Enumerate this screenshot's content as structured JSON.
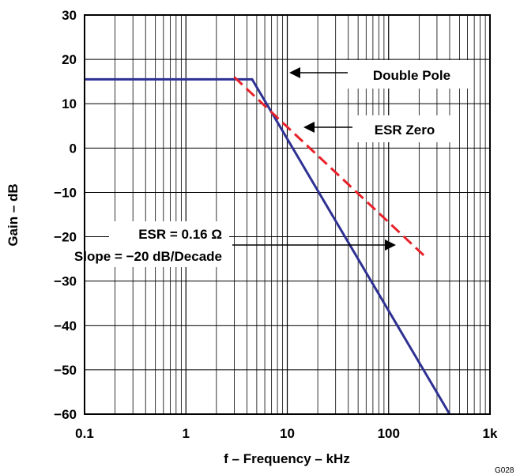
{
  "chart_data": {
    "type": "line",
    "xlabel": "f – Frequency – kHz",
    "ylabel": "Gain – dB",
    "xscale": "log",
    "xlim": [
      0.1,
      1000
    ],
    "ylim": [
      -60,
      30
    ],
    "grid": true,
    "x_tick_labels": [
      "0.1",
      "1",
      "10",
      "100",
      "1k"
    ],
    "y_tick_labels": [
      "30",
      "20",
      "10",
      "0",
      "−10",
      "−20",
      "−30",
      "−40",
      "−50",
      "−60"
    ],
    "series": [
      {
        "color": "#2e3192",
        "style": "solid",
        "x": [
          0.1,
          4.5,
          400
        ],
        "y": [
          15.5,
          15.5,
          -60
        ]
      },
      {
        "color": "#e8212a",
        "style": "dashed",
        "x": [
          3,
          230
        ],
        "y": [
          16,
          -24.5
        ]
      }
    ],
    "annotations": [
      {
        "text": "Double Pole"
      },
      {
        "text": "ESR Zero"
      },
      {
        "text": "ESR = 0.16 Ω"
      },
      {
        "text": "Slope = −20 dB/Decade"
      }
    ],
    "figure_code": "G028"
  }
}
